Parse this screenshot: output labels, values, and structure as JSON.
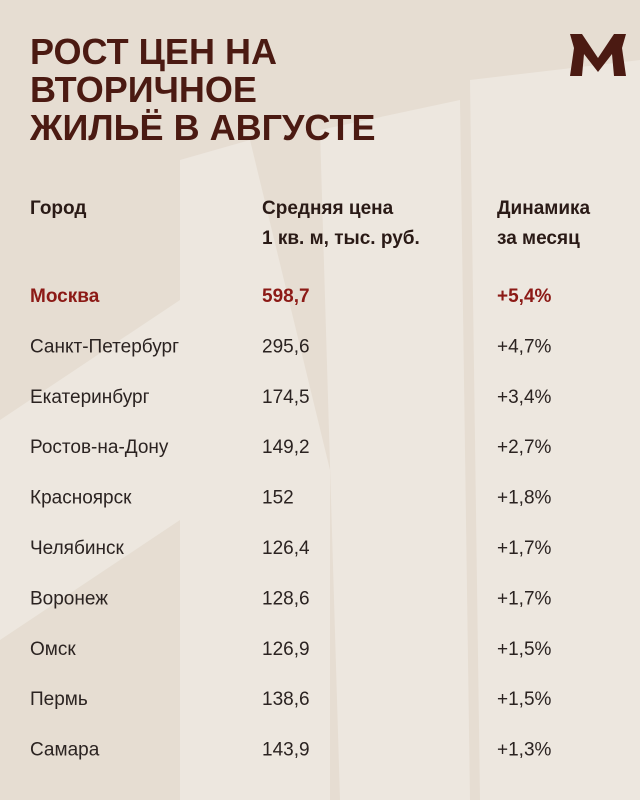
{
  "header": {
    "title_lines": [
      "РОСТ ЦЕН НА",
      "ВТОРИЧНОЕ",
      "ЖИЛЬЁ В АВГУСТЕ"
    ]
  },
  "table": {
    "columns": [
      [
        "Город"
      ],
      [
        "Средняя цена",
        "1 кв. м, тыс. руб."
      ],
      [
        "Динамика",
        "за месяц"
      ]
    ],
    "rows": [
      [
        "Москва",
        "598,7",
        "+5,4%"
      ],
      [
        "Санкт-Петербург",
        "295,6",
        "+4,7%"
      ],
      [
        "Екатеринбург",
        "174,5",
        "+3,4%"
      ],
      [
        "Ростов-на-Дону",
        "149,2",
        "+2,7%"
      ],
      [
        "Красноярск",
        "152",
        "+1,8%"
      ],
      [
        "Челябинск",
        "126,4",
        "+1,7%"
      ],
      [
        "Воронеж",
        "128,6",
        "+1,7%"
      ],
      [
        "Омск",
        "126,9",
        "+1,5%"
      ],
      [
        "Пермь",
        "138,6",
        "+1,5%"
      ],
      [
        "Самара",
        "143,9",
        "+1,3%"
      ]
    ]
  }
}
